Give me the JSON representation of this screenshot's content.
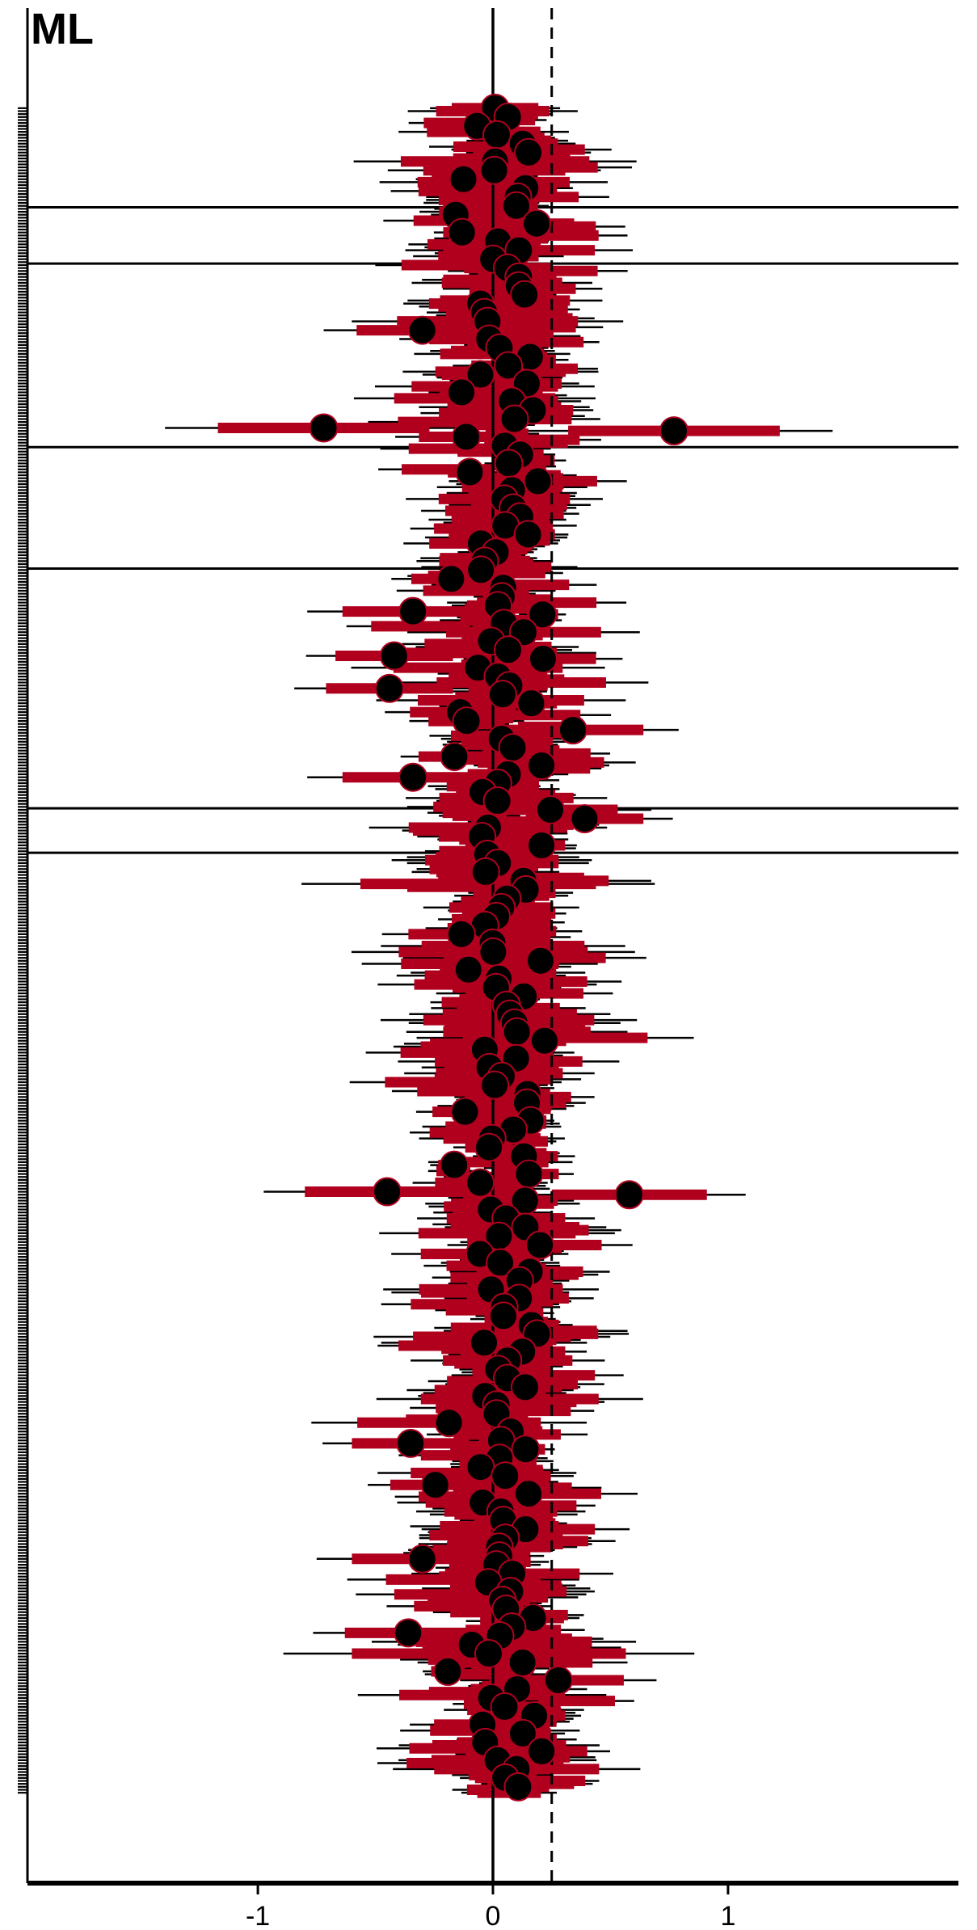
{
  "chart_data": {
    "type": "forest",
    "title": "ML",
    "xlabel": "",
    "ylabel": "",
    "xlim": [
      -1.98,
      1.98
    ],
    "x_ticks": [
      -1,
      0,
      1
    ],
    "x_tick_labels": [
      "-1",
      "0",
      "1"
    ],
    "reference_lines": [
      {
        "x": 0,
        "style": "solid"
      },
      {
        "x": 0.25,
        "style": "dashed"
      }
    ],
    "n_rows": 570,
    "group_separators_after_row": [
      33,
      52,
      114,
      155,
      236,
      251
    ],
    "legend": "none",
    "grid": false,
    "colors": {
      "interval_inner": "#b0001e",
      "interval_outer": "#000000",
      "point_fill": "#000000",
      "point_edge": "#b0001e",
      "axis": "#000000"
    }
  }
}
